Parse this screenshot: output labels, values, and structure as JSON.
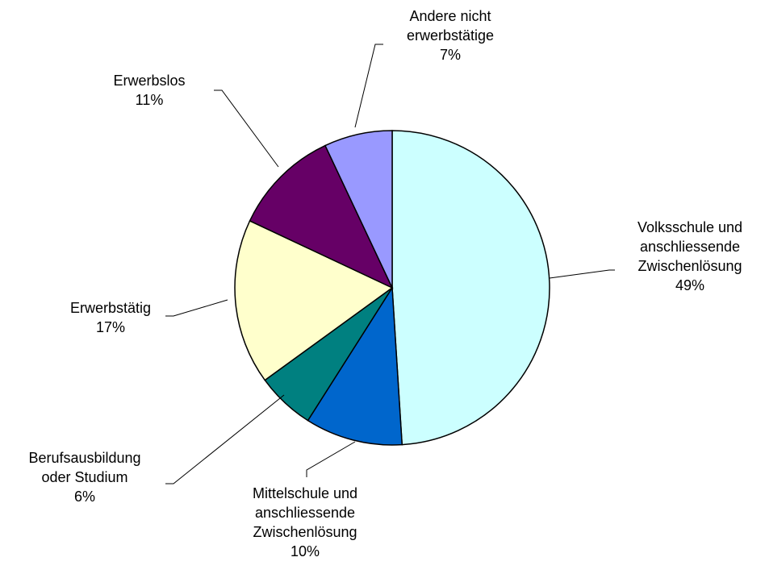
{
  "chart_data": {
    "type": "pie",
    "categories": [
      "Volksschule und anschliessende Zwischenlösung",
      "Mittelschule und anschliessende Zwischenlösung",
      "Berufsausbildung oder Studium",
      "Erwerbstätig",
      "Erwerbslos",
      "Andere nicht erwerbstätige"
    ],
    "values": [
      49,
      10,
      6,
      17,
      11,
      7
    ],
    "value_labels": [
      "49%",
      "10%",
      "6%",
      "17%",
      "11%",
      "7%"
    ],
    "colors": [
      "#ccffff",
      "#0066cc",
      "#008080",
      "#ffffcc",
      "#660066",
      "#9999ff"
    ]
  }
}
